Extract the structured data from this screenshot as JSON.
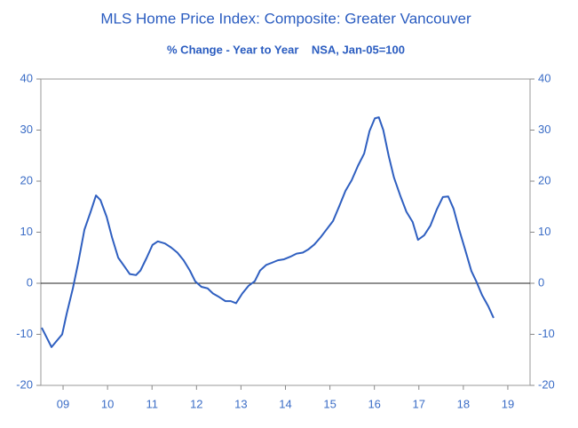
{
  "chart_data": {
    "type": "line",
    "title": "MLS Home Price Index: Composite: Greater Vancouver",
    "subtitle": "% Change - Year to Year    NSA, Jan-05=100",
    "x": [
      2009.02,
      2009.24,
      2009.48,
      2009.58,
      2009.72,
      2009.84,
      2009.98,
      2010.12,
      2010.24,
      2010.34,
      2010.48,
      2010.6,
      2010.74,
      2010.88,
      2011.0,
      2011.14,
      2011.24,
      2011.38,
      2011.51,
      2011.63,
      2011.79,
      2011.93,
      2012.07,
      2012.21,
      2012.35,
      2012.47,
      2012.61,
      2012.75,
      2012.87,
      2013.01,
      2013.15,
      2013.27,
      2013.39,
      2013.53,
      2013.67,
      2013.81,
      2013.93,
      2014.07,
      2014.19,
      2014.33,
      2014.47,
      2014.61,
      2014.75,
      2014.89,
      2015.01,
      2015.15,
      2015.29,
      2015.43,
      2015.57,
      2015.71,
      2015.85,
      2015.99,
      2016.13,
      2016.27,
      2016.39,
      2016.51,
      2016.6,
      2016.7,
      2016.82,
      2016.94,
      2017.08,
      2017.22,
      2017.36,
      2017.48,
      2017.62,
      2017.76,
      2017.9,
      2018.04,
      2018.16,
      2018.28,
      2018.4,
      2018.54,
      2018.68,
      2018.8,
      2018.92,
      2019.06,
      2019.18
    ],
    "series": [
      {
        "color": "#2f5fc0",
        "values": [
          -8.7,
          -12.5,
          -10,
          -6,
          -1,
          4,
          10.5,
          14,
          17.2,
          16.3,
          13,
          9,
          5,
          3.3,
          1.8,
          1.6,
          2.5,
          5,
          7.5,
          8.2,
          7.8,
          7,
          6,
          4.5,
          2.5,
          0.4,
          -0.7,
          -1,
          -2,
          -2.7,
          -3.5,
          -3.5,
          -3.9,
          -2,
          -0.5,
          0.4,
          2.5,
          3.6,
          4,
          4.5,
          4.7,
          5.2,
          5.8,
          6,
          6.6,
          7.6,
          9,
          10.6,
          12.2,
          15.1,
          18.1,
          20.2,
          23,
          25.4,
          29.8,
          32.3,
          32.5,
          30,
          25,
          20.7,
          17.2,
          14,
          12,
          8.5,
          9.4,
          11.3,
          14.4,
          16.9,
          17,
          14.6,
          10.7,
          6.6,
          2.4,
          0.2,
          -2.3,
          -4.5,
          -6.8
        ]
      }
    ],
    "xlim": [
      2009,
      2020
    ],
    "xticks": [
      {
        "value": 2009.5,
        "label": "09"
      },
      {
        "value": 2010.5,
        "label": "10"
      },
      {
        "value": 2011.5,
        "label": "11"
      },
      {
        "value": 2012.5,
        "label": "12"
      },
      {
        "value": 2013.5,
        "label": "13"
      },
      {
        "value": 2014.5,
        "label": "14"
      },
      {
        "value": 2015.5,
        "label": "15"
      },
      {
        "value": 2016.5,
        "label": "16"
      },
      {
        "value": 2017.5,
        "label": "17"
      },
      {
        "value": 2018.5,
        "label": "18"
      },
      {
        "value": 2019.5,
        "label": "19"
      }
    ],
    "ylim": [
      -20,
      40
    ],
    "yticks": [
      -20,
      -10,
      0,
      10,
      20,
      30,
      40
    ]
  }
}
